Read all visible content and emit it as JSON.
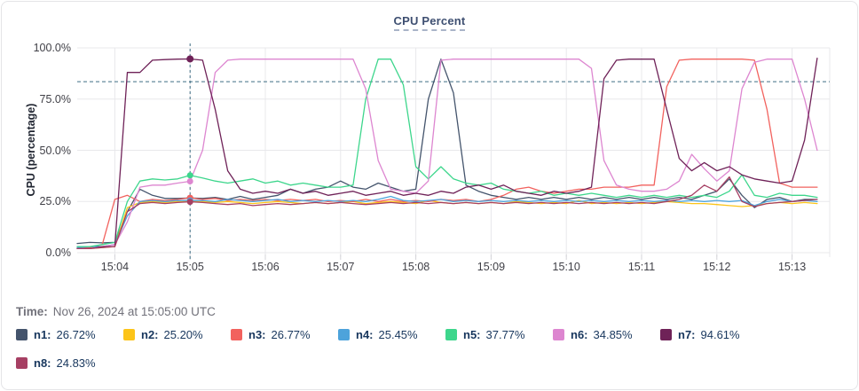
{
  "header": {
    "title": "CPU Percent"
  },
  "time_label": {
    "prefix": "Time:",
    "value": "Nov 26, 2024 at 15:05:00 UTC"
  },
  "colors": {
    "grid": "#e8e8eb",
    "tick_stub": "#d4d4d8",
    "axis_text": "#3f3f46",
    "card_border": "#e4e4e7",
    "title_text": "#3e4f71",
    "legend_text": "#17365d",
    "time_text": "#71717a",
    "crosshair": "#3e6d83",
    "threshold": "#3e6d83"
  },
  "legend": {
    "items": [
      {
        "name": "n1",
        "value": "26.72%",
        "color": "#44546c"
      },
      {
        "name": "n2",
        "value": "25.20%",
        "color": "#fcc419"
      },
      {
        "name": "n3",
        "value": "26.77%",
        "color": "#f2625e"
      },
      {
        "name": "n4",
        "value": "25.45%",
        "color": "#4da3db"
      },
      {
        "name": "n5",
        "value": "37.77%",
        "color": "#3dd68c"
      },
      {
        "name": "n6",
        "value": "34.85%",
        "color": "#dd86d0"
      },
      {
        "name": "n7",
        "value": "94.61%",
        "color": "#6f2258"
      },
      {
        "name": "n8",
        "value": "24.83%",
        "color": "#a63f63"
      }
    ]
  },
  "chart_data": {
    "type": "line",
    "title": "CPU Percent",
    "xlabel": "",
    "ylabel": "CPU (percentage)",
    "ylim": [
      0,
      100
    ],
    "grid": true,
    "legend_position": "bottom",
    "y_ticks": [
      {
        "pct": 0,
        "label": "0.0%"
      },
      {
        "pct": 25,
        "label": "25.0%"
      },
      {
        "pct": 50,
        "label": "50.0%"
      },
      {
        "pct": 75,
        "label": "75.0%"
      },
      {
        "pct": 100,
        "label": "100.0%"
      }
    ],
    "x_domain_sec": [
      0,
      600
    ],
    "x_start_time": "15:03:30",
    "sample_step_sec": 10,
    "x_ticks": [
      {
        "sec": 30,
        "label": "15:04"
      },
      {
        "sec": 90,
        "label": "15:05"
      },
      {
        "sec": 150,
        "label": "15:06"
      },
      {
        "sec": 210,
        "label": "15:07"
      },
      {
        "sec": 270,
        "label": "15:08"
      },
      {
        "sec": 330,
        "label": "15:09"
      },
      {
        "sec": 390,
        "label": "15:10"
      },
      {
        "sec": 450,
        "label": "15:11"
      },
      {
        "sec": 510,
        "label": "15:12"
      },
      {
        "sec": 570,
        "label": "15:13"
      }
    ],
    "threshold": {
      "pct": 83.5,
      "style": "dashed"
    },
    "crosshair": {
      "sec": 90,
      "time": "15:05:00"
    },
    "series": [
      {
        "name": "n1",
        "color": "#44546c",
        "crosshair_value": 26.72,
        "values": [
          4.5,
          5,
          4.8,
          5,
          20,
          31,
          28,
          26.5,
          26.5,
          26.72,
          26.5,
          27,
          26,
          27.5,
          26,
          27,
          28,
          31,
          29,
          31,
          32,
          35,
          32,
          31,
          34,
          32,
          30,
          31,
          75,
          94.5,
          78,
          33,
          30,
          28,
          27,
          26,
          27,
          26,
          27,
          26,
          27,
          26,
          27,
          26,
          27,
          26,
          27,
          26,
          27,
          26,
          28,
          30,
          36,
          28,
          22,
          26,
          27,
          25,
          26,
          26
        ]
      },
      {
        "name": "n2",
        "color": "#fcc419",
        "crosshair_value": 25.2,
        "values": [
          2,
          2,
          2.5,
          3,
          22,
          24.5,
          25,
          24.5,
          25,
          25.2,
          25,
          24.5,
          25,
          24.5,
          24,
          24.5,
          25,
          24.5,
          24,
          24.5,
          24,
          24.5,
          25,
          24,
          24.5,
          25,
          24.5,
          24,
          25.5,
          24.5,
          24,
          24.5,
          24,
          24.5,
          24,
          25,
          24.5,
          24,
          24.5,
          24,
          25.5,
          24,
          24.5,
          24,
          24.5,
          24,
          24.5,
          25,
          24.5,
          24,
          24,
          23.5,
          23,
          22.5,
          23,
          24,
          24.5,
          24,
          24.5,
          24
        ]
      },
      {
        "name": "n3",
        "color": "#f2625e",
        "crosshair_value": 26.77,
        "values": [
          2,
          2.5,
          4,
          26,
          28,
          25,
          26,
          25.5,
          26,
          26.77,
          26,
          26.5,
          25.5,
          26,
          25.5,
          26,
          25.5,
          26,
          25.5,
          26,
          25,
          25.5,
          25,
          26,
          25,
          26,
          25,
          25.5,
          25,
          26,
          25.5,
          26,
          25,
          26,
          28,
          31,
          32,
          30,
          29,
          30,
          31,
          31,
          32,
          32,
          32,
          33,
          33,
          81,
          94,
          94.5,
          94.5,
          94.5,
          94.5,
          94.5,
          94,
          70,
          34,
          32,
          32,
          32
        ]
      },
      {
        "name": "n4",
        "color": "#4da3db",
        "crosshair_value": 25.45,
        "values": [
          2.5,
          3,
          3,
          4,
          18,
          25,
          25.5,
          25,
          25.5,
          25.45,
          25.5,
          25,
          26,
          25.5,
          25,
          25.5,
          26,
          25,
          25.5,
          25,
          25.5,
          25,
          25.5,
          25,
          26,
          27.5,
          25.5,
          25,
          25.5,
          26,
          25,
          25.5,
          25,
          25.5,
          25,
          25.5,
          25,
          25.5,
          25,
          25.5,
          25,
          25.5,
          25,
          25.5,
          25,
          25.5,
          25,
          25.5,
          25,
          25.5,
          25,
          25.5,
          25,
          25.5,
          23,
          25,
          26,
          25,
          25.5,
          25
        ]
      },
      {
        "name": "n5",
        "color": "#3dd68c",
        "crosshair_value": 37.77,
        "values": [
          3,
          3,
          4,
          5,
          25,
          35,
          36,
          35.5,
          36,
          37.77,
          36.5,
          35,
          34,
          35,
          36,
          34,
          35,
          33,
          34,
          33,
          32,
          32,
          33,
          75,
          94.5,
          94.5,
          82,
          42,
          36,
          42,
          36,
          34,
          33,
          34,
          31,
          30,
          29,
          30,
          28,
          29,
          28,
          29,
          28,
          27,
          28,
          27,
          28,
          27,
          28,
          27,
          28,
          27,
          30,
          38,
          28,
          27,
          29,
          28,
          28,
          27
        ]
      },
      {
        "name": "n6",
        "color": "#dd86d0",
        "crosshair_value": 34.85,
        "values": [
          2,
          2,
          3,
          4,
          15,
          32,
          33,
          33,
          34,
          34.85,
          50,
          88,
          94,
          94.5,
          94.5,
          94.5,
          94.5,
          94.5,
          94.5,
          94.5,
          94.5,
          94.5,
          94.5,
          80,
          45,
          31,
          30,
          29,
          35,
          94,
          94.5,
          94.5,
          94.5,
          94.5,
          94.5,
          94.5,
          94.5,
          94.5,
          94.5,
          94.5,
          94.5,
          90,
          45,
          33,
          31,
          30,
          30,
          31,
          35,
          48,
          41,
          35,
          40,
          80,
          93,
          94.5,
          94.5,
          94.5,
          75,
          50
        ]
      },
      {
        "name": "n7",
        "color": "#6f2258",
        "crosshair_value": 94.61,
        "values": [
          2,
          2,
          3,
          3,
          88,
          88,
          94,
          94.3,
          94.5,
          94.61,
          94,
          70,
          40,
          31,
          29,
          30,
          29,
          31,
          29,
          30,
          28,
          29,
          30,
          28,
          29,
          30,
          28,
          29,
          28,
          30,
          29,
          32,
          33,
          31,
          33,
          30,
          29,
          28,
          30,
          29,
          30,
          32,
          85,
          94,
          94.5,
          94.5,
          94.5,
          70,
          46,
          40,
          44,
          40,
          42,
          38,
          36,
          35,
          34,
          35,
          55,
          95
        ]
      },
      {
        "name": "n8",
        "color": "#a63f63",
        "crosshair_value": 24.83,
        "values": [
          2,
          2,
          2.5,
          3,
          20,
          24,
          24.5,
          24,
          24.5,
          24.83,
          24.5,
          24,
          23.5,
          24,
          23,
          23.5,
          24,
          23.5,
          24,
          24.5,
          24,
          24.5,
          24,
          23.5,
          24,
          24.5,
          24,
          24.5,
          24,
          24.5,
          24,
          24.5,
          24,
          24.5,
          24,
          24.5,
          24,
          24.5,
          24,
          24.5,
          24,
          24.5,
          24,
          24.5,
          24,
          24.5,
          24,
          25,
          26,
          28,
          33,
          30,
          37,
          25,
          22.5,
          24,
          24.5,
          25,
          25.5,
          26
        ]
      }
    ]
  }
}
